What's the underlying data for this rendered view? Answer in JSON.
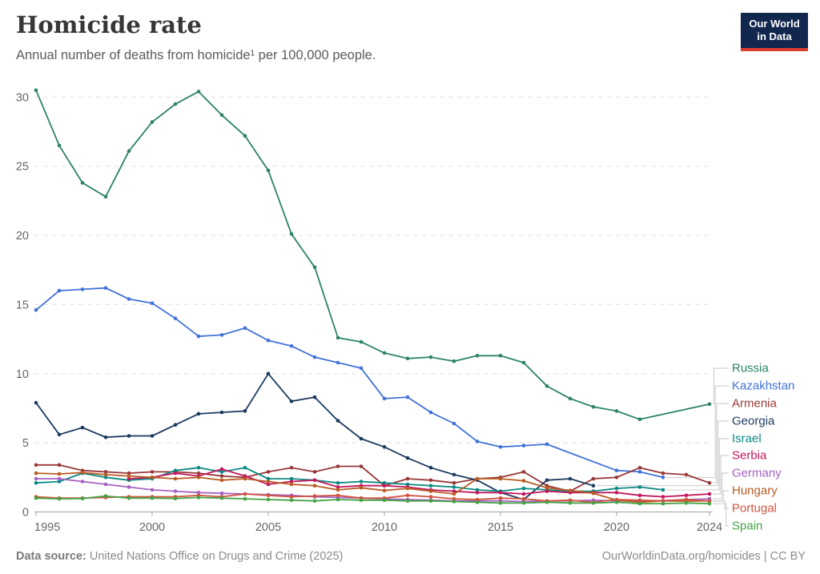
{
  "header": {
    "title": "Homicide rate",
    "subtitle": "Annual number of deaths from homicide¹ per 100,000 people.",
    "logo_lines": [
      "Our World",
      "in Data"
    ]
  },
  "footer": {
    "source_label": "Data source:",
    "source_text": " United Nations Office on Drugs and Crime (2025)",
    "attribution": "OurWorldinData.org/homicides | CC BY"
  },
  "colors": {
    "logo_bg": "#12274e",
    "logo_underline": "#dc3d33",
    "gridline": "#e1e1e1",
    "axis": "#a3a3a3",
    "tick_text": "#666666",
    "connector": "#c4c4c4",
    "title_text": "#383636",
    "subtitle_text": "#5b5b5b"
  },
  "chart_data": {
    "type": "line",
    "title": "Homicide rate",
    "subtitle": "Annual number of deaths from homicide¹ per 100,000 people.",
    "xlabel": "",
    "ylabel": "",
    "x_ticks": [
      1995,
      2000,
      2005,
      2010,
      2015,
      2020,
      2024
    ],
    "y_ticks": [
      0,
      5,
      10,
      15,
      20,
      25,
      30
    ],
    "xlim": [
      1995,
      2024
    ],
    "ylim": [
      0,
      31
    ],
    "grid": "dashed-horizontal",
    "legend_position": "right",
    "series": [
      {
        "name": "Russia",
        "color": "#2c8465",
        "points": [
          [
            1995,
            30.5
          ],
          [
            1996,
            26.5
          ],
          [
            1997,
            23.8
          ],
          [
            1998,
            22.8
          ],
          [
            1999,
            26.1
          ],
          [
            2000,
            28.2
          ],
          [
            2001,
            29.5
          ],
          [
            2002,
            30.4
          ],
          [
            2003,
            28.7
          ],
          [
            2004,
            27.2
          ],
          [
            2005,
            24.7
          ],
          [
            2006,
            20.1
          ],
          [
            2007,
            17.7
          ],
          [
            2008,
            12.6
          ],
          [
            2009,
            12.3
          ],
          [
            2010,
            11.5
          ],
          [
            2011,
            11.1
          ],
          [
            2012,
            11.2
          ],
          [
            2013,
            10.9
          ],
          [
            2014,
            11.3
          ],
          [
            2015,
            11.3
          ],
          [
            2016,
            10.8
          ],
          [
            2017,
            9.1
          ],
          [
            2018,
            8.2
          ],
          [
            2019,
            7.6
          ],
          [
            2020,
            7.3
          ],
          [
            2021,
            6.7
          ],
          [
            2024,
            7.8
          ]
        ]
      },
      {
        "name": "Kazakhstan",
        "color": "#4272d9",
        "points": [
          [
            1995,
            14.6
          ],
          [
            1996,
            16.0
          ],
          [
            1997,
            16.1
          ],
          [
            1998,
            16.2
          ],
          [
            1999,
            15.4
          ],
          [
            2000,
            15.1
          ],
          [
            2001,
            14.0
          ],
          [
            2002,
            12.7
          ],
          [
            2003,
            12.8
          ],
          [
            2004,
            13.3
          ],
          [
            2005,
            12.4
          ],
          [
            2006,
            12.0
          ],
          [
            2007,
            11.2
          ],
          [
            2008,
            10.8
          ],
          [
            2009,
            10.4
          ],
          [
            2010,
            8.2
          ],
          [
            2011,
            8.3
          ],
          [
            2012,
            7.2
          ],
          [
            2013,
            6.4
          ],
          [
            2014,
            5.1
          ],
          [
            2015,
            4.7
          ],
          [
            2016,
            4.8
          ],
          [
            2017,
            4.9
          ],
          [
            2020,
            3.0
          ],
          [
            2021,
            2.9
          ],
          [
            2022,
            2.5
          ]
        ]
      },
      {
        "name": "Armenia",
        "color": "#983838",
        "points": [
          [
            1995,
            3.4
          ],
          [
            1996,
            3.4
          ],
          [
            1997,
            3.0
          ],
          [
            1998,
            2.9
          ],
          [
            1999,
            2.8
          ],
          [
            2000,
            2.9
          ],
          [
            2001,
            2.9
          ],
          [
            2002,
            2.8
          ],
          [
            2003,
            2.6
          ],
          [
            2004,
            2.5
          ],
          [
            2005,
            2.9
          ],
          [
            2006,
            3.2
          ],
          [
            2007,
            2.9
          ],
          [
            2008,
            3.3
          ],
          [
            2009,
            3.3
          ],
          [
            2010,
            1.9
          ],
          [
            2011,
            2.4
          ],
          [
            2012,
            2.3
          ],
          [
            2013,
            2.1
          ],
          [
            2014,
            2.4
          ],
          [
            2015,
            2.5
          ],
          [
            2016,
            2.9
          ],
          [
            2017,
            1.9
          ],
          [
            2018,
            1.5
          ],
          [
            2019,
            2.4
          ],
          [
            2020,
            2.5
          ],
          [
            2021,
            3.2
          ],
          [
            2022,
            2.8
          ],
          [
            2023,
            2.7
          ],
          [
            2024,
            2.1
          ]
        ]
      },
      {
        "name": "Georgia",
        "color": "#1d3a5f",
        "points": [
          [
            1995,
            7.9
          ],
          [
            1996,
            5.6
          ],
          [
            1997,
            6.1
          ],
          [
            1998,
            5.4
          ],
          [
            1999,
            5.5
          ],
          [
            2000,
            5.5
          ],
          [
            2001,
            6.3
          ],
          [
            2002,
            7.1
          ],
          [
            2003,
            7.2
          ],
          [
            2004,
            7.3
          ],
          [
            2005,
            10.0
          ],
          [
            2006,
            8.0
          ],
          [
            2007,
            8.3
          ],
          [
            2008,
            6.6
          ],
          [
            2009,
            5.3
          ],
          [
            2010,
            4.7
          ],
          [
            2011,
            3.9
          ],
          [
            2012,
            3.2
          ],
          [
            2013,
            2.7
          ],
          [
            2014,
            2.3
          ],
          [
            2015,
            1.4
          ],
          [
            2016,
            0.9
          ],
          [
            2017,
            2.3
          ],
          [
            2018,
            2.4
          ],
          [
            2019,
            1.9
          ]
        ]
      },
      {
        "name": "Israel",
        "color": "#0b8a83",
        "points": [
          [
            1995,
            2.1
          ],
          [
            1996,
            2.2
          ],
          [
            1997,
            2.8
          ],
          [
            1998,
            2.5
          ],
          [
            1999,
            2.3
          ],
          [
            2000,
            2.4
          ],
          [
            2001,
            3.0
          ],
          [
            2002,
            3.2
          ],
          [
            2003,
            2.9
          ],
          [
            2004,
            3.2
          ],
          [
            2005,
            2.4
          ],
          [
            2006,
            2.4
          ],
          [
            2007,
            2.3
          ],
          [
            2008,
            2.1
          ],
          [
            2009,
            2.2
          ],
          [
            2010,
            2.1
          ],
          [
            2011,
            2.0
          ],
          [
            2012,
            1.9
          ],
          [
            2013,
            1.8
          ],
          [
            2014,
            1.6
          ],
          [
            2015,
            1.5
          ],
          [
            2016,
            1.7
          ],
          [
            2017,
            1.6
          ],
          [
            2018,
            1.5
          ],
          [
            2019,
            1.5
          ],
          [
            2020,
            1.7
          ],
          [
            2021,
            1.8
          ],
          [
            2022,
            1.6
          ]
        ]
      },
      {
        "name": "Serbia",
        "color": "#c2175b",
        "points": [
          [
            1999,
            2.4
          ],
          [
            2000,
            2.5
          ],
          [
            2001,
            2.8
          ],
          [
            2002,
            2.6
          ],
          [
            2003,
            3.1
          ],
          [
            2004,
            2.6
          ],
          [
            2005,
            2.0
          ],
          [
            2006,
            2.2
          ],
          [
            2007,
            2.3
          ],
          [
            2008,
            1.8
          ],
          [
            2009,
            1.9
          ],
          [
            2010,
            1.9
          ],
          [
            2011,
            1.8
          ],
          [
            2012,
            1.6
          ],
          [
            2013,
            1.5
          ],
          [
            2014,
            1.4
          ],
          [
            2015,
            1.4
          ],
          [
            2016,
            1.3
          ],
          [
            2017,
            1.5
          ],
          [
            2018,
            1.4
          ],
          [
            2019,
            1.4
          ],
          [
            2020,
            1.4
          ],
          [
            2021,
            1.2
          ],
          [
            2022,
            1.1
          ],
          [
            2023,
            1.2
          ],
          [
            2024,
            1.3
          ]
        ]
      },
      {
        "name": "Germany",
        "color": "#a662c3",
        "points": [
          [
            1995,
            2.4
          ],
          [
            1996,
            2.4
          ],
          [
            1997,
            2.2
          ],
          [
            1998,
            2.0
          ],
          [
            1999,
            1.8
          ],
          [
            2000,
            1.6
          ],
          [
            2001,
            1.5
          ],
          [
            2002,
            1.4
          ],
          [
            2003,
            1.35
          ],
          [
            2004,
            1.3
          ],
          [
            2005,
            1.25
          ],
          [
            2006,
            1.2
          ],
          [
            2007,
            1.1
          ],
          [
            2008,
            1.05
          ],
          [
            2009,
            1.0
          ],
          [
            2010,
            0.95
          ],
          [
            2011,
            0.9
          ],
          [
            2012,
            0.85
          ],
          [
            2013,
            0.8
          ],
          [
            2014,
            0.8
          ],
          [
            2015,
            0.8
          ],
          [
            2016,
            0.75
          ],
          [
            2017,
            0.8
          ],
          [
            2018,
            0.8
          ],
          [
            2019,
            0.85
          ],
          [
            2020,
            0.8
          ],
          [
            2021,
            0.8
          ],
          [
            2022,
            0.82
          ],
          [
            2023,
            0.9
          ],
          [
            2024,
            0.95
          ]
        ]
      },
      {
        "name": "Hungary",
        "color": "#b85c23",
        "points": [
          [
            1995,
            2.8
          ],
          [
            1996,
            2.75
          ],
          [
            1997,
            2.85
          ],
          [
            1998,
            2.7
          ],
          [
            1999,
            2.6
          ],
          [
            2000,
            2.5
          ],
          [
            2001,
            2.4
          ],
          [
            2002,
            2.5
          ],
          [
            2003,
            2.3
          ],
          [
            2004,
            2.4
          ],
          [
            2005,
            2.2
          ],
          [
            2006,
            2.0
          ],
          [
            2007,
            1.9
          ],
          [
            2008,
            1.6
          ],
          [
            2009,
            1.75
          ],
          [
            2010,
            1.55
          ],
          [
            2011,
            1.7
          ],
          [
            2012,
            1.5
          ],
          [
            2013,
            1.3
          ],
          [
            2014,
            2.4
          ],
          [
            2015,
            2.4
          ],
          [
            2016,
            2.25
          ],
          [
            2017,
            1.75
          ],
          [
            2018,
            1.55
          ],
          [
            2019,
            1.35
          ],
          [
            2020,
            0.85
          ],
          [
            2021,
            0.7
          ],
          [
            2022,
            0.8
          ],
          [
            2023,
            0.78
          ],
          [
            2024,
            0.8
          ]
        ]
      },
      {
        "name": "Portugal",
        "color": "#d05440",
        "points": [
          [
            1995,
            1.1
          ],
          [
            1996,
            1.0
          ],
          [
            1997,
            1.0
          ],
          [
            1998,
            1.05
          ],
          [
            1999,
            1.1
          ],
          [
            2000,
            1.1
          ],
          [
            2001,
            1.1
          ],
          [
            2002,
            1.2
          ],
          [
            2003,
            1.1
          ],
          [
            2004,
            1.3
          ],
          [
            2005,
            1.2
          ],
          [
            2006,
            1.1
          ],
          [
            2007,
            1.15
          ],
          [
            2008,
            1.2
          ],
          [
            2009,
            1.0
          ],
          [
            2010,
            1.0
          ],
          [
            2011,
            1.2
          ],
          [
            2012,
            1.1
          ],
          [
            2013,
            0.95
          ],
          [
            2014,
            0.9
          ],
          [
            2015,
            1.0
          ],
          [
            2016,
            0.95
          ],
          [
            2017,
            0.8
          ],
          [
            2018,
            0.85
          ],
          [
            2019,
            0.7
          ],
          [
            2020,
            0.9
          ],
          [
            2021,
            0.85
          ],
          [
            2022,
            0.8
          ],
          [
            2023,
            0.9
          ],
          [
            2024,
            0.78
          ]
        ]
      },
      {
        "name": "Spain",
        "color": "#45a345",
        "points": [
          [
            1995,
            1.0
          ],
          [
            1996,
            0.95
          ],
          [
            1997,
            0.97
          ],
          [
            1998,
            1.15
          ],
          [
            1999,
            1.0
          ],
          [
            2000,
            1.0
          ],
          [
            2001,
            0.97
          ],
          [
            2002,
            1.05
          ],
          [
            2003,
            1.0
          ],
          [
            2004,
            0.95
          ],
          [
            2005,
            0.9
          ],
          [
            2006,
            0.85
          ],
          [
            2007,
            0.8
          ],
          [
            2008,
            0.9
          ],
          [
            2009,
            0.85
          ],
          [
            2010,
            0.85
          ],
          [
            2011,
            0.8
          ],
          [
            2012,
            0.8
          ],
          [
            2013,
            0.75
          ],
          [
            2014,
            0.7
          ],
          [
            2015,
            0.65
          ],
          [
            2016,
            0.65
          ],
          [
            2017,
            0.7
          ],
          [
            2018,
            0.65
          ],
          [
            2019,
            0.65
          ],
          [
            2020,
            0.7
          ],
          [
            2021,
            0.6
          ],
          [
            2022,
            0.6
          ],
          [
            2023,
            0.65
          ],
          [
            2024,
            0.6
          ]
        ]
      }
    ]
  }
}
